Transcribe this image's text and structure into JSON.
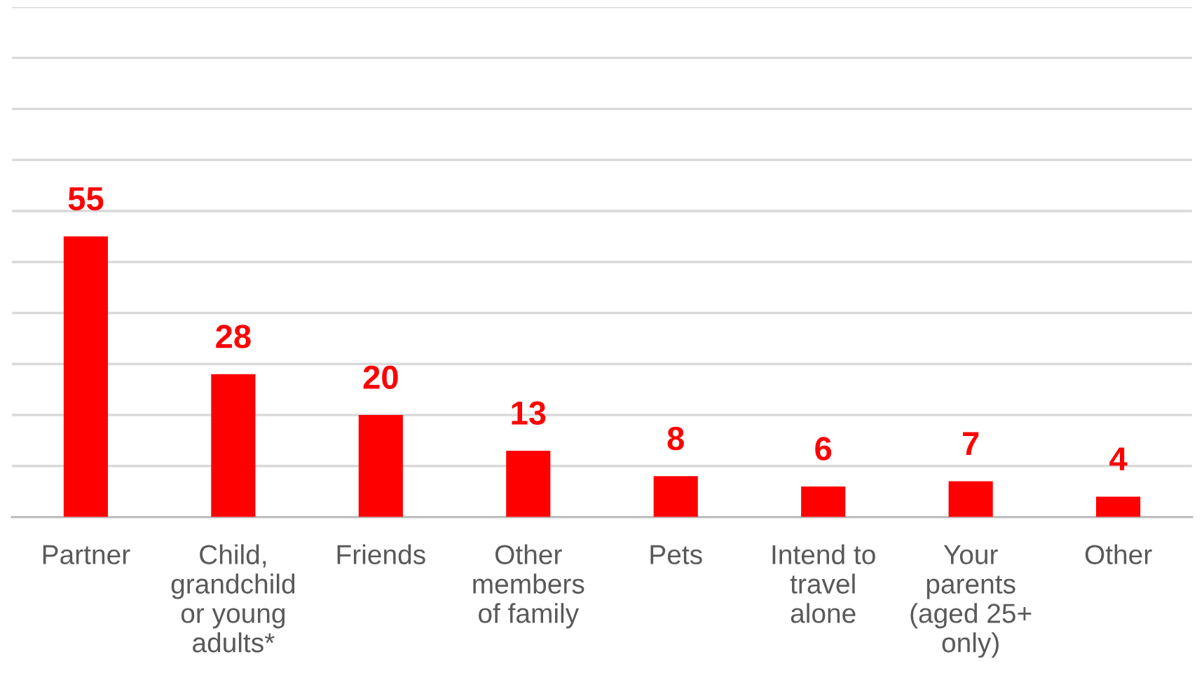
{
  "chart_data": {
    "type": "bar",
    "categories": [
      "Partner",
      "Child,\ngrandchild\nor young\nadults*",
      "Friends",
      "Other\nmembers\nof family",
      "Pets",
      "Intend to\ntravel\nalone",
      "Your\nparents\n(aged 25+\nonly)",
      "Other"
    ],
    "values": [
      55,
      28,
      20,
      13,
      8,
      6,
      7,
      4
    ],
    "color": "#ff0000",
    "data_labels": true,
    "ylim": [
      0,
      100
    ],
    "yticks": [
      {
        "value": 0,
        "label": null
      },
      {
        "value": 10,
        "label": null
      },
      {
        "value": 20,
        "label": null
      },
      {
        "value": 30,
        "label": null
      },
      {
        "value": 40,
        "label": null
      },
      {
        "value": 50,
        "label": null
      },
      {
        "value": 60,
        "label": null
      },
      {
        "value": 70,
        "label": null
      },
      {
        "value": 80,
        "label": null
      },
      {
        "value": 90,
        "label": null
      },
      {
        "value": 100,
        "label": null
      }
    ],
    "tick_labels": "x",
    "grid": "y"
  }
}
